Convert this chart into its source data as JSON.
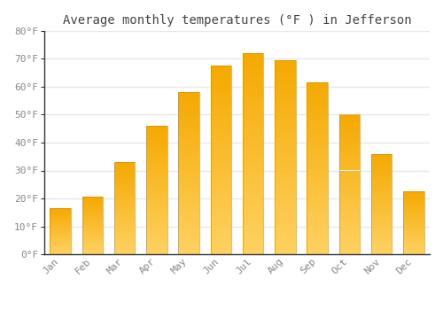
{
  "title": "Average monthly temperatures (°F ) in Jefferson",
  "months": [
    "Jan",
    "Feb",
    "Mar",
    "Apr",
    "May",
    "Jun",
    "Jul",
    "Aug",
    "Sep",
    "Oct",
    "Nov",
    "Dec"
  ],
  "values": [
    16.5,
    20.5,
    33.0,
    46.0,
    58.0,
    67.5,
    72.0,
    69.5,
    61.5,
    50.0,
    36.0,
    22.5
  ],
  "bar_color_top": "#F5A800",
  "bar_color_bottom": "#FFD060",
  "ylim": [
    0,
    80
  ],
  "yticks": [
    0,
    10,
    20,
    30,
    40,
    50,
    60,
    70,
    80
  ],
  "ytick_labels": [
    "0°F",
    "10°F",
    "20°F",
    "30°F",
    "40°F",
    "50°F",
    "60°F",
    "70°F",
    "80°F"
  ],
  "background_color": "#FFFFFF",
  "grid_color": "#E8E8E8",
  "title_fontsize": 10,
  "tick_fontsize": 8,
  "tick_color": "#888888"
}
